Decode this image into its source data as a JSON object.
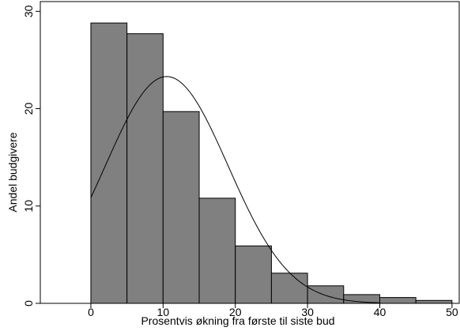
{
  "colors": {
    "bar_fill": "#808080",
    "bar_stroke": "#000000",
    "curve": "#000000",
    "frame": "#000000",
    "background": "#ffffff"
  },
  "chart_data": {
    "type": "bar",
    "title": "",
    "xlabel": "Prosentvis økning fra første til siste bud",
    "ylabel": "Andel budgivere",
    "xlim": [
      -7,
      51
    ],
    "ylim": [
      0,
      31
    ],
    "xticks": [
      0,
      10,
      20,
      30,
      40,
      50
    ],
    "yticks": [
      0,
      10,
      20,
      30
    ],
    "grid": false,
    "legend": "none",
    "bins": [
      {
        "start": 0,
        "end": 5,
        "value": 28.8
      },
      {
        "start": 5,
        "end": 10,
        "value": 27.7
      },
      {
        "start": 10,
        "end": 15,
        "value": 19.7
      },
      {
        "start": 15,
        "end": 20,
        "value": 10.8
      },
      {
        "start": 20,
        "end": 25,
        "value": 5.9
      },
      {
        "start": 25,
        "end": 30,
        "value": 3.1
      },
      {
        "start": 30,
        "end": 35,
        "value": 1.8
      },
      {
        "start": 35,
        "end": 40,
        "value": 0.9
      },
      {
        "start": 40,
        "end": 45,
        "value": 0.6
      },
      {
        "start": 45,
        "end": 50,
        "value": 0.3
      }
    ],
    "normal_curve": {
      "mean": 10.5,
      "sd": 8.5,
      "peak": 23.3,
      "x_range": [
        0,
        40
      ]
    }
  }
}
